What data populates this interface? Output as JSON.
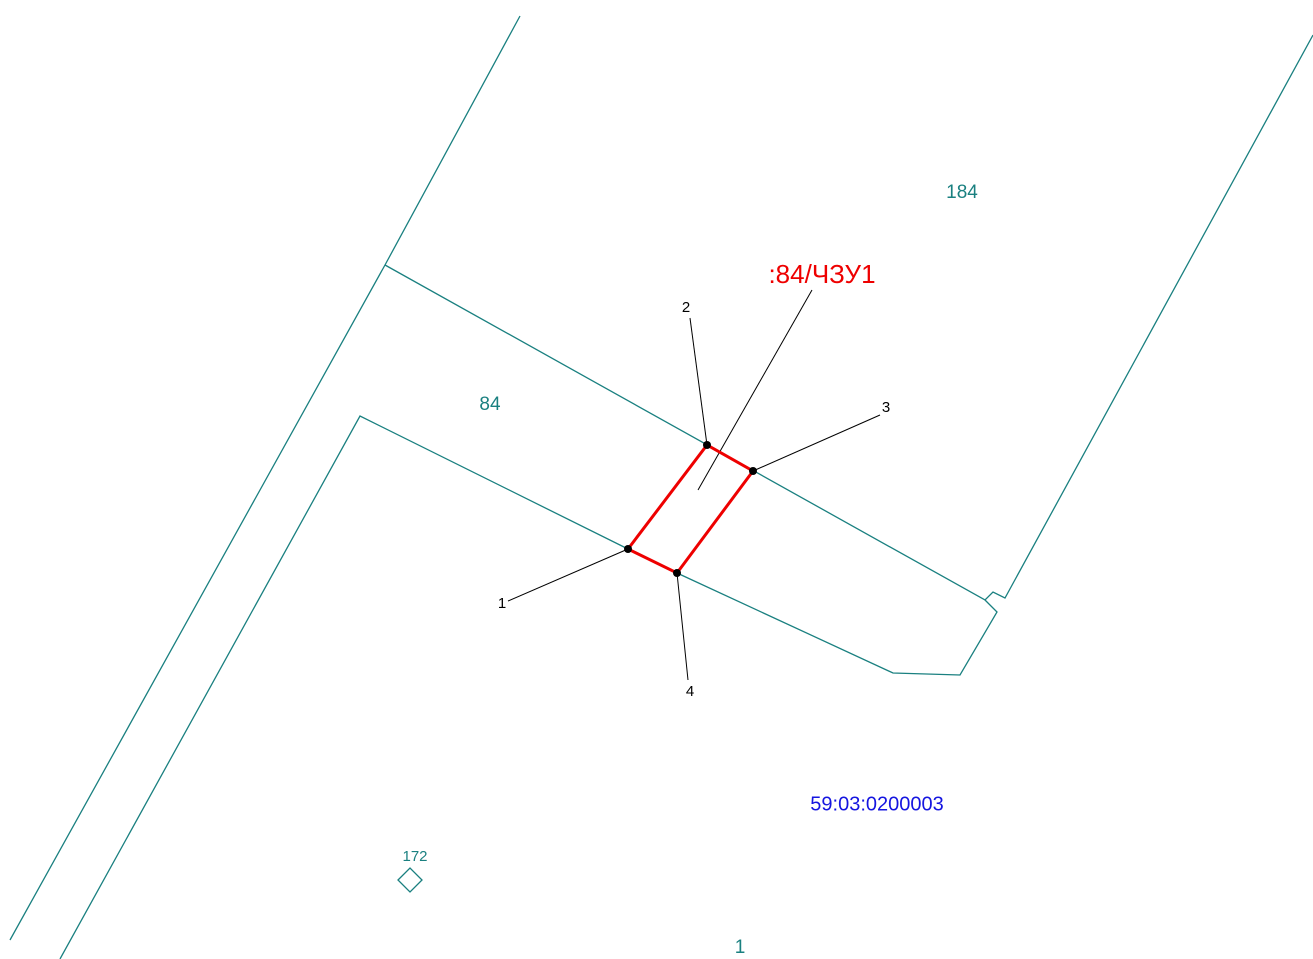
{
  "parcels": [
    {
      "label": "184"
    },
    {
      "label": "84"
    },
    {
      "label": "172"
    },
    {
      "label": "1"
    }
  ],
  "part_label": ":84/ЧЗУ1",
  "quarter_label": "59:03:0200003",
  "points": [
    {
      "label": "1"
    },
    {
      "label": "2"
    },
    {
      "label": "3"
    },
    {
      "label": "4"
    }
  ]
}
